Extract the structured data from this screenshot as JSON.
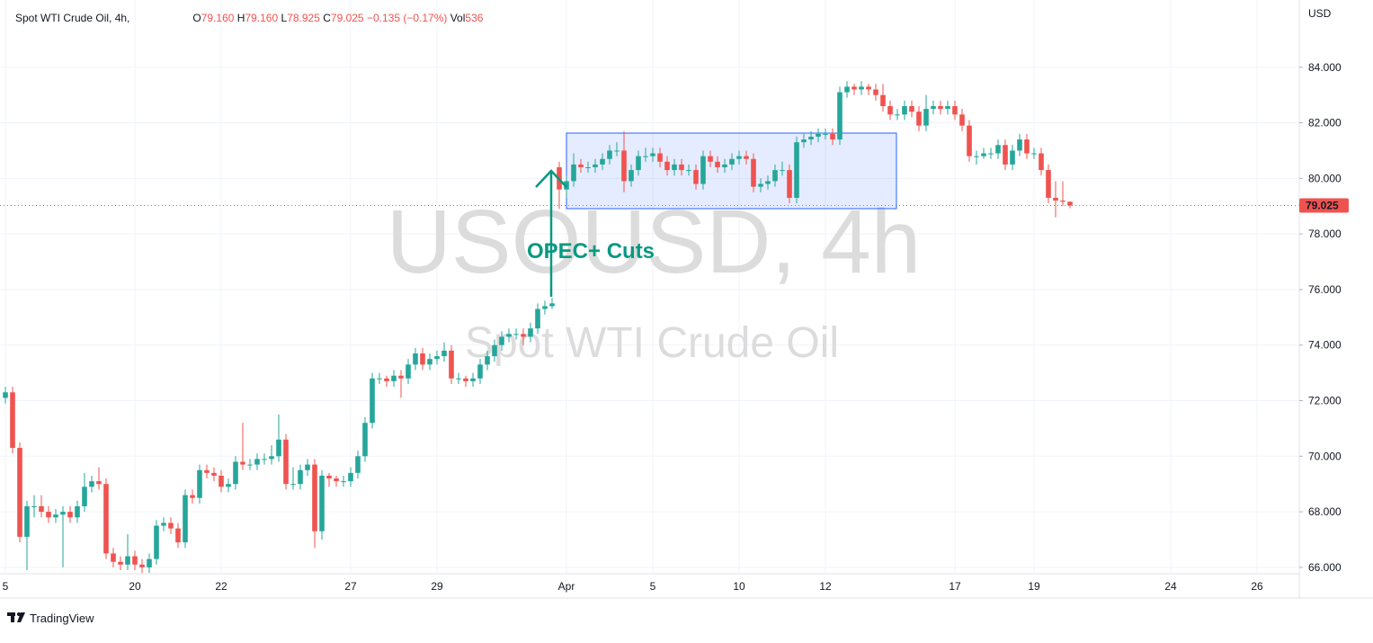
{
  "chart_data": {
    "type": "candlestick",
    "title": "Spot WTI Crude Oil, 4h,",
    "watermark": "USOUSD, 4h",
    "watermark_subtitle": "Spot WTI Crude Oil",
    "annotation": "OPEC+ Cuts",
    "currency": "USD",
    "footer": "TradingView",
    "ohlc": [
      {
        "key": "O",
        "value": 79.16,
        "label": "79.160"
      },
      {
        "key": "H",
        "value": 79.16,
        "label": "79.160"
      },
      {
        "key": "L",
        "value": 78.925,
        "label": "78.925"
      },
      {
        "key": "C",
        "value": 79.025,
        "label": "79.025"
      }
    ],
    "change": {
      "value": -0.135,
      "label": "−0.135"
    },
    "change_pct": {
      "value": -0.17,
      "label": "(−0.17%)"
    },
    "volume_key": "Vol",
    "volume": 536,
    "last_price": 79.025,
    "up_color": "#26a69a",
    "down_color": "#ef5350",
    "grid": true,
    "categories": [
      "5",
      null,
      null,
      null,
      null,
      null,
      null,
      null,
      null,
      null,
      null,
      null,
      null,
      null,
      null,
      null,
      null,
      null,
      "20",
      null,
      null,
      null,
      null,
      null,
      null,
      null,
      null,
      null,
      null,
      null,
      "22",
      null,
      null,
      null,
      null,
      null,
      null,
      null,
      null,
      null,
      null,
      null,
      null,
      null,
      null,
      null,
      null,
      null,
      "27",
      null,
      null,
      null,
      null,
      null,
      null,
      null,
      null,
      null,
      null,
      null,
      "29",
      null,
      null,
      null,
      null,
      null,
      null,
      null,
      null,
      null,
      null,
      null,
      null,
      null,
      null,
      null,
      null,
      null,
      "Apr",
      null,
      null,
      null,
      null,
      null,
      null,
      null,
      null,
      null,
      null,
      null,
      "5",
      null,
      null,
      null,
      null,
      null,
      null,
      null,
      null,
      null,
      null,
      null,
      "10",
      null,
      null,
      null,
      null,
      null,
      null,
      null,
      null,
      null,
      null,
      null,
      "12",
      null,
      null,
      null,
      null,
      null,
      null,
      null,
      null,
      null,
      null,
      null,
      null,
      null,
      null,
      null,
      null,
      null,
      "17",
      null,
      null,
      null,
      null,
      null,
      null,
      null,
      null,
      null,
      null,
      "19",
      null,
      null,
      null,
      null,
      null,
      null,
      null,
      null,
      null,
      null,
      null,
      null,
      null,
      null,
      null,
      null,
      null,
      null,
      "24",
      null,
      null,
      null,
      null,
      null,
      null,
      null,
      null,
      null,
      null,
      null,
      "26"
    ],
    "open": [
      72.1,
      72.3,
      70.3,
      67.1,
      68.2,
      68.2,
      68.0,
      67.8,
      67.9,
      68.0,
      67.8,
      68.2,
      68.9,
      69.1,
      69.0,
      66.5,
      66.2,
      66.1,
      66.4,
      66.1,
      66.0,
      66.3,
      67.5,
      67.6,
      67.4,
      66.9,
      68.6,
      68.5,
      69.5,
      69.4,
      69.3,
      68.9,
      69.0,
      69.8,
      69.7,
      69.7,
      69.9,
      69.9,
      70.0,
      70.6,
      69.0,
      69.0,
      69.5,
      69.7,
      67.3,
      69.3,
      69.2,
      69.1,
      69.1,
      69.4,
      70.0,
      71.2,
      72.8,
      72.8,
      72.7,
      72.9,
      72.8,
      73.3,
      73.7,
      73.3,
      73.5,
      73.6,
      73.8,
      72.8,
      72.8,
      72.7,
      72.8,
      73.3,
      73.6,
      74.0,
      74.3,
      74.4,
      74.4,
      74.3,
      74.6,
      75.3,
      75.4,
      80.4,
      79.6,
      79.9,
      80.5,
      80.4,
      80.4,
      80.5,
      80.7,
      81.0,
      81.0,
      79.9,
      80.3,
      80.8,
      80.8,
      80.9,
      80.6,
      80.3,
      80.5,
      80.3,
      80.3,
      79.8,
      80.8,
      80.6,
      80.4,
      80.5,
      80.7,
      80.8,
      80.7,
      79.7,
      79.8,
      79.9,
      80.3,
      80.3,
      79.3,
      81.3,
      81.4,
      81.5,
      81.6,
      81.6,
      81.4,
      83.1,
      83.3,
      83.2,
      83.3,
      83.2,
      83.0,
      82.6,
      82.3,
      82.3,
      82.6,
      82.4,
      81.9,
      82.5,
      82.6,
      82.5,
      82.6,
      82.3,
      81.9,
      80.8,
      80.8,
      80.9,
      80.9,
      81.2,
      80.5,
      81.0,
      81.4,
      80.9,
      80.9,
      80.3,
      79.3,
      79.2,
      79.16,
      null,
      null,
      null,
      null,
      null,
      null,
      null,
      null,
      null,
      null,
      null,
      null,
      null,
      null,
      null,
      null,
      null,
      null,
      null,
      null,
      null,
      null,
      null,
      null,
      null,
      null
    ],
    "high": [
      72.5,
      72.5,
      70.5,
      68.4,
      68.6,
      68.6,
      68.2,
      68.1,
      68.2,
      68.2,
      68.4,
      69.4,
      69.3,
      69.6,
      69.2,
      66.7,
      66.4,
      67.2,
      66.6,
      66.3,
      66.5,
      67.7,
      67.8,
      67.8,
      67.6,
      68.8,
      68.8,
      69.7,
      69.7,
      69.6,
      69.5,
      69.2,
      70.0,
      71.2,
      69.9,
      70.1,
      70.1,
      70.4,
      71.5,
      70.8,
      69.6,
      69.7,
      69.9,
      69.9,
      69.5,
      69.4,
      69.3,
      69.3,
      69.6,
      70.2,
      71.4,
      73.0,
      73.0,
      72.9,
      73.1,
      73.1,
      73.5,
      73.9,
      73.9,
      73.7,
      73.8,
      74.1,
      74.0,
      73.0,
      72.9,
      73.0,
      73.5,
      73.8,
      74.2,
      74.5,
      74.6,
      74.6,
      74.6,
      74.8,
      75.5,
      75.6,
      75.7,
      80.6,
      80.1,
      80.9,
      80.7,
      80.6,
      80.7,
      80.9,
      81.2,
      81.3,
      81.7,
      80.5,
      81.0,
      81.1,
      81.1,
      81.1,
      80.8,
      80.7,
      80.7,
      80.5,
      80.5,
      81.0,
      81.0,
      80.8,
      80.7,
      80.9,
      81.0,
      81.0,
      80.9,
      80.0,
      80.1,
      80.5,
      80.6,
      80.5,
      81.5,
      81.6,
      81.7,
      81.8,
      81.8,
      81.8,
      83.3,
      83.5,
      83.4,
      83.5,
      83.4,
      83.4,
      83.4,
      82.8,
      82.5,
      82.8,
      82.8,
      82.6,
      83.0,
      82.8,
      82.8,
      82.8,
      82.8,
      82.5,
      82.1,
      81.0,
      81.1,
      81.1,
      81.4,
      81.4,
      81.2,
      81.6,
      81.6,
      81.1,
      81.1,
      80.5,
      79.9,
      79.9,
      79.16,
      null,
      null,
      null,
      null,
      null,
      null,
      null,
      null,
      null,
      null,
      null,
      null,
      null,
      null,
      null,
      null,
      null,
      null,
      null,
      null,
      null,
      null,
      null,
      null,
      null,
      null
    ],
    "low": [
      71.9,
      70.1,
      66.9,
      65.9,
      67.8,
      67.8,
      67.6,
      67.6,
      66.0,
      67.6,
      67.6,
      68.0,
      68.7,
      68.8,
      66.3,
      66.0,
      65.9,
      65.9,
      65.9,
      65.8,
      65.8,
      66.1,
      67.3,
      67.2,
      66.7,
      66.7,
      68.3,
      68.3,
      69.2,
      69.1,
      68.7,
      68.7,
      68.8,
      69.5,
      69.5,
      69.5,
      69.7,
      69.7,
      69.8,
      68.8,
      68.8,
      68.8,
      69.3,
      66.7,
      67.0,
      68.9,
      68.9,
      68.9,
      68.9,
      69.2,
      69.8,
      71.0,
      72.6,
      72.5,
      72.5,
      72.1,
      72.6,
      73.1,
      73.1,
      73.1,
      73.3,
      73.4,
      72.6,
      72.6,
      72.5,
      72.5,
      72.6,
      73.1,
      73.4,
      73.8,
      74.1,
      74.2,
      74.0,
      74.1,
      74.4,
      75.1,
      75.3,
      78.9,
      79.3,
      79.7,
      80.2,
      80.2,
      80.2,
      80.3,
      80.5,
      80.8,
      79.5,
      79.7,
      80.1,
      80.6,
      80.6,
      80.4,
      80.1,
      80.1,
      80.1,
      80.1,
      79.6,
      79.6,
      80.4,
      80.2,
      80.2,
      80.3,
      80.5,
      80.5,
      79.5,
      79.5,
      79.6,
      79.7,
      80.1,
      79.1,
      79.1,
      81.1,
      81.2,
      81.3,
      81.4,
      81.2,
      81.2,
      82.9,
      83.0,
      83.0,
      83.0,
      82.8,
      82.4,
      82.1,
      82.1,
      82.1,
      82.2,
      81.7,
      81.7,
      82.3,
      82.3,
      82.3,
      82.1,
      81.7,
      80.6,
      80.5,
      80.7,
      80.7,
      80.7,
      80.3,
      80.3,
      80.8,
      80.7,
      80.7,
      80.1,
      79.1,
      78.6,
      79.0,
      78.925,
      null,
      null,
      null,
      null,
      null,
      null,
      null,
      null,
      null,
      null,
      null,
      null,
      null,
      null,
      null,
      null,
      null,
      null,
      null,
      null,
      null,
      null,
      null,
      null,
      null,
      null
    ],
    "close": [
      72.3,
      70.3,
      67.1,
      68.2,
      68.2,
      68.0,
      67.8,
      67.9,
      68.0,
      67.8,
      68.2,
      68.9,
      69.1,
      69.0,
      66.5,
      66.2,
      66.1,
      66.4,
      66.1,
      66.0,
      66.3,
      67.5,
      67.6,
      67.4,
      66.9,
      68.6,
      68.5,
      69.5,
      69.4,
      69.3,
      68.9,
      69.0,
      69.8,
      69.7,
      69.7,
      69.9,
      69.9,
      70.0,
      70.6,
      69.0,
      69.0,
      69.5,
      69.7,
      67.3,
      69.3,
      69.2,
      69.1,
      69.1,
      69.4,
      70.0,
      71.2,
      72.8,
      72.8,
      72.7,
      72.9,
      72.8,
      73.3,
      73.7,
      73.3,
      73.5,
      73.6,
      73.8,
      72.8,
      72.8,
      72.7,
      72.8,
      73.3,
      73.6,
      74.0,
      74.3,
      74.4,
      74.4,
      74.3,
      74.6,
      75.3,
      75.4,
      75.5,
      79.6,
      79.9,
      80.5,
      80.4,
      80.4,
      80.5,
      80.7,
      81.0,
      81.0,
      79.9,
      80.3,
      80.8,
      80.8,
      80.9,
      80.6,
      80.3,
      80.5,
      80.3,
      80.3,
      79.8,
      80.8,
      80.6,
      80.4,
      80.5,
      80.7,
      80.8,
      80.7,
      79.7,
      79.8,
      79.9,
      80.3,
      80.3,
      79.3,
      81.3,
      81.4,
      81.5,
      81.6,
      81.6,
      81.4,
      83.1,
      83.3,
      83.2,
      83.3,
      83.2,
      83.0,
      82.6,
      82.3,
      82.3,
      82.6,
      82.4,
      81.9,
      82.5,
      82.6,
      82.5,
      82.6,
      82.3,
      81.9,
      80.8,
      80.8,
      80.9,
      80.9,
      81.2,
      80.5,
      81.0,
      81.4,
      80.9,
      80.9,
      80.3,
      79.3,
      79.2,
      79.16,
      79.025,
      null,
      null,
      null,
      null,
      null,
      null,
      null,
      null,
      null,
      null,
      null,
      null,
      null,
      null,
      null,
      null,
      null,
      null,
      null,
      null,
      null,
      null,
      null,
      null,
      null,
      null
    ],
    "ylim": [
      65.77,
      86.42
    ],
    "yticks": [
      {
        "value": 66,
        "label": "66.000"
      },
      {
        "value": 68,
        "label": "68.000"
      },
      {
        "value": 70,
        "label": "70.000"
      },
      {
        "value": 72,
        "label": "72.000"
      },
      {
        "value": 74,
        "label": "74.000"
      },
      {
        "value": 76,
        "label": "76.000"
      },
      {
        "value": 78,
        "label": "78.000"
      },
      {
        "value": 80,
        "label": "80.000"
      },
      {
        "value": 82,
        "label": "82.000"
      },
      {
        "value": 84,
        "label": "84.000"
      }
    ]
  }
}
